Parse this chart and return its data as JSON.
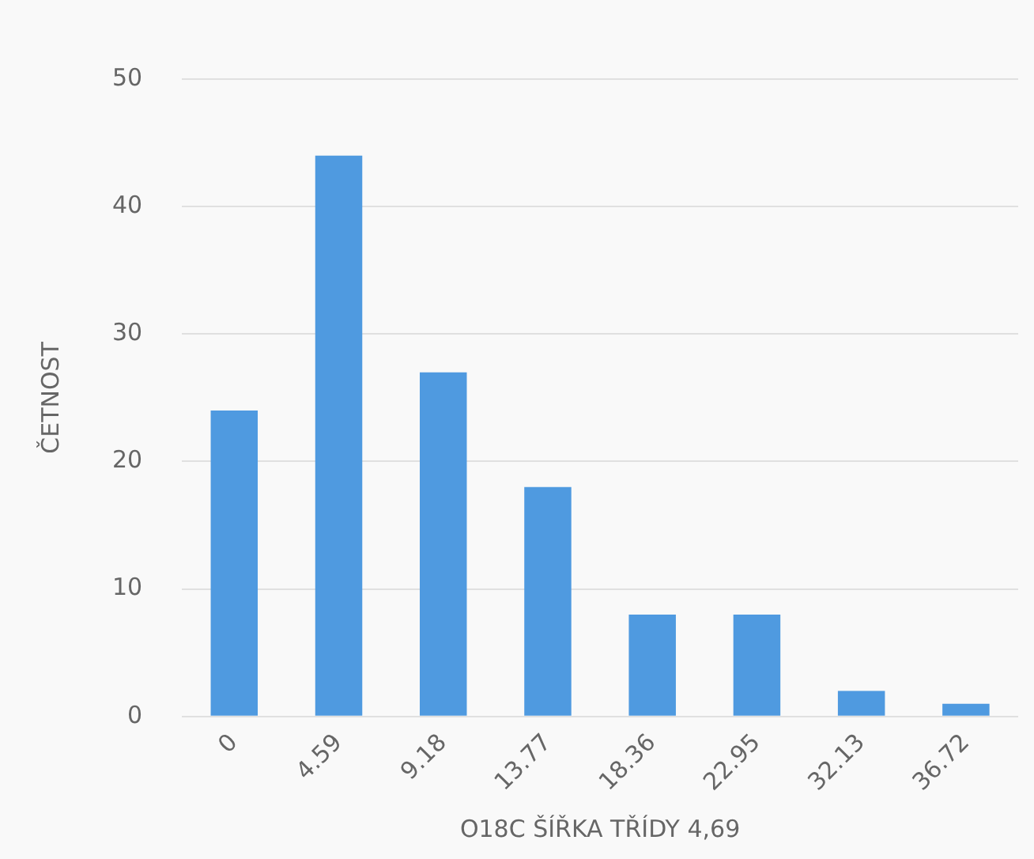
{
  "chart_data": {
    "type": "bar",
    "xlabel": "O18C ŠÍŘKA TŘÍDY 4,69",
    "ylabel": "ČETNOST",
    "categories": [
      "0",
      "4.59",
      "9.18",
      "13.77",
      "18.36",
      "22.95",
      "32.13",
      "36.72"
    ],
    "values": [
      24,
      44,
      27,
      18,
      8,
      8,
      2,
      1
    ],
    "color": "#4f9ae0",
    "ylim": [
      0,
      50
    ],
    "yticks": [
      0,
      10,
      20,
      30,
      40,
      50
    ],
    "grid": "y"
  }
}
